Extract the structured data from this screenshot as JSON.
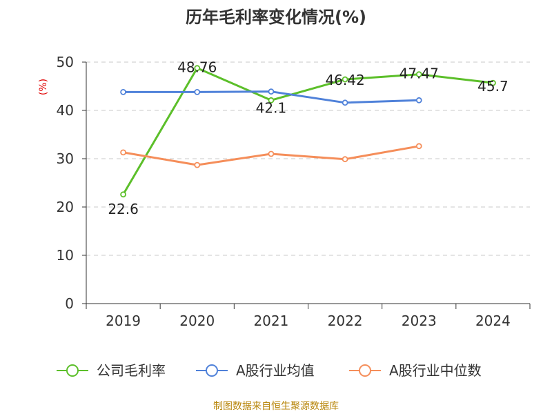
{
  "colors": {
    "gross_margin": "#5cbf2a",
    "industry_mean": "#4f81d9",
    "industry_median": "#f58e5a"
  },
  "chart_data": {
    "type": "line",
    "title": "历年毛利率变化情况(%)",
    "ylabel": "(%)",
    "xlabel": "",
    "categories": [
      "2019",
      "2020",
      "2021",
      "2022",
      "2023",
      "2024"
    ],
    "ylim": [
      0,
      50
    ],
    "yticks": [
      0,
      10,
      20,
      30,
      40,
      50
    ],
    "grid": true,
    "legend_position": "bottom",
    "series": [
      {
        "name": "公司毛利率",
        "values": [
          22.6,
          48.76,
          42.1,
          46.42,
          47.47,
          45.7
        ],
        "labels": [
          "22.6",
          "48.76",
          "42.1",
          "46.42",
          "47.47",
          "45.7"
        ]
      },
      {
        "name": "A股行业均值",
        "values": [
          43.8,
          43.8,
          43.9,
          41.6,
          42.1,
          null
        ]
      },
      {
        "name": "A股行业中位数",
        "values": [
          31.3,
          28.7,
          31.0,
          29.9,
          32.6,
          null
        ]
      }
    ]
  },
  "source_note": "制图数据来自恒生聚源数据库"
}
